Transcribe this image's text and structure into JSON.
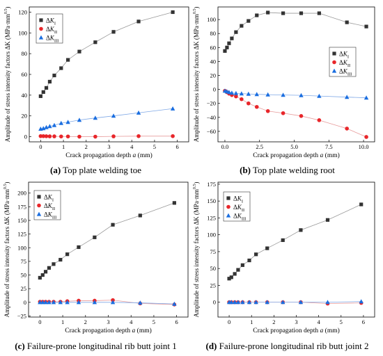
{
  "figure": {
    "captions": [
      {
        "tag": "(a)",
        "text": " Top plate welding toe"
      },
      {
        "tag": "(b)",
        "text": " Top plate welding root"
      },
      {
        "tag": "(c)",
        "text": " Failure-prone longitudinal rib butt joint 1"
      },
      {
        "tag": "(d)",
        "text": " Failure-prone longitudinal rib butt joint 2"
      }
    ]
  },
  "colors": {
    "KI": "#333333",
    "KII": "#e8262a",
    "KIII": "#1a6ee0",
    "KI_line": "#999999",
    "KII_line": "#e79a9a",
    "KIII_line": "#7fa8e6"
  },
  "chart_data": [
    {
      "type": "line",
      "panel": "a",
      "xlabel": "Crack propagation depth",
      "xlabel_var": "a",
      "xlabel_unit": "(mm)",
      "ylabel": "Amplitude of stress intensity factors ΔK (MPa·mm^0.5)",
      "xlim": [
        -0.5,
        6.5
      ],
      "ylim": [
        -5,
        125
      ],
      "xticks": [
        0,
        1,
        2,
        3,
        4,
        5,
        6
      ],
      "yticks": [
        0,
        20,
        40,
        60,
        80,
        100,
        120
      ],
      "legend_position": "top-left",
      "grid": false,
      "series": [
        {
          "name": "ΔKI",
          "sym": "K",
          "sub": "I",
          "marker": "square",
          "x": [
            0,
            0.12,
            0.25,
            0.4,
            0.6,
            0.9,
            1.2,
            1.7,
            2.4,
            3.2,
            4.3,
            5.8
          ],
          "y": [
            39,
            43,
            47,
            53,
            59,
            66,
            74,
            82,
            91,
            101,
            111,
            120
          ]
        },
        {
          "name": "ΔKII",
          "sym": "K",
          "sub": "II",
          "marker": "circle",
          "x": [
            0,
            0.12,
            0.25,
            0.4,
            0.6,
            0.9,
            1.2,
            1.7,
            2.4,
            3.2,
            4.3,
            5.8
          ],
          "y": [
            0.5,
            0.5,
            0.4,
            0.3,
            0.3,
            0.2,
            0.2,
            0,
            0,
            0.3,
            0.5,
            0.5
          ]
        },
        {
          "name": "ΔKIII",
          "sym": "K",
          "sub": "III",
          "marker": "triangle",
          "x": [
            0,
            0.12,
            0.25,
            0.4,
            0.6,
            0.9,
            1.2,
            1.7,
            2.4,
            3.2,
            4.3,
            5.8
          ],
          "y": [
            7.5,
            8,
            9,
            10,
            11,
            13,
            14,
            16,
            18,
            20,
            23,
            27
          ]
        }
      ]
    },
    {
      "type": "line",
      "panel": "b",
      "xlabel": "Crack propagation depth",
      "xlabel_var": "a",
      "xlabel_unit": "(mm)",
      "ylabel": "Amplitude of stress intensity factors ΔK (MPa·mm^0.5)",
      "xlim": [
        -0.5,
        10.8
      ],
      "ylim": [
        -75,
        118
      ],
      "xticks": [
        0.0,
        2.5,
        5.0,
        7.5,
        10.0
      ],
      "yticks": [
        -60,
        -40,
        -20,
        0,
        20,
        40,
        60,
        80,
        100
      ],
      "legend_position": "right",
      "grid": false,
      "series": [
        {
          "name": "ΔKI",
          "sym": "K",
          "sub": "I",
          "marker": "square",
          "x": [
            0,
            0.15,
            0.3,
            0.5,
            0.8,
            1.2,
            1.7,
            2.3,
            3.1,
            4.2,
            5.5,
            6.8,
            8.8,
            10.2
          ],
          "y": [
            55,
            60,
            66,
            73,
            82,
            91,
            98,
            106,
            110,
            109,
            109,
            109,
            96,
            90
          ]
        },
        {
          "name": "ΔKII",
          "sym": "K",
          "sub": "II",
          "marker": "circle",
          "x": [
            0,
            0.15,
            0.3,
            0.5,
            0.8,
            1.2,
            1.7,
            2.3,
            3.1,
            4.2,
            5.5,
            6.8,
            8.8,
            10.2
          ],
          "y": [
            -2,
            -4,
            -6,
            -8,
            -10,
            -14,
            -20,
            -25,
            -31,
            -34,
            -38,
            -44,
            -56,
            -68
          ]
        },
        {
          "name": "ΔKIII",
          "sym": "K",
          "sub": "III",
          "marker": "triangle",
          "x": [
            0,
            0.15,
            0.3,
            0.5,
            0.8,
            1.2,
            1.7,
            2.3,
            3.1,
            4.2,
            5.5,
            6.8,
            8.8,
            10.2
          ],
          "y": [
            -2,
            -3,
            -4,
            -5,
            -5.5,
            -6,
            -6.5,
            -7,
            -7.5,
            -8,
            -8.5,
            -9.5,
            -11,
            -12
          ]
        }
      ]
    },
    {
      "type": "line",
      "panel": "c",
      "xlabel": "Crack propagation depth",
      "xlabel_var": "a",
      "xlabel_unit": "(mm)",
      "ylabel": "Amplitude of stress intensity factors ΔK (MPa·mm^0.5)",
      "xlim": [
        -0.5,
        6.5
      ],
      "ylim": [
        -27,
        220
      ],
      "xticks": [
        0,
        1,
        2,
        3,
        4,
        5,
        6
      ],
      "yticks": [
        -25,
        0,
        25,
        50,
        75,
        100,
        125,
        150,
        175,
        200
      ],
      "legend_position": "top-left",
      "grid": false,
      "series": [
        {
          "name": "ΔKI",
          "sym": "K",
          "sub": "I",
          "marker": "square",
          "x": [
            0,
            0.12,
            0.25,
            0.4,
            0.6,
            0.9,
            1.2,
            1.7,
            2.4,
            3.2,
            4.4,
            5.9
          ],
          "y": [
            45,
            50,
            56,
            63,
            70,
            78,
            88,
            101,
            119,
            142,
            159,
            182
          ]
        },
        {
          "name": "ΔKII",
          "sym": "K",
          "sub": "II",
          "marker": "circle",
          "x": [
            0,
            0.12,
            0.25,
            0.4,
            0.6,
            0.9,
            1.2,
            1.7,
            2.4,
            3.2,
            4.4,
            5.9
          ],
          "y": [
            1,
            1,
            1,
            1,
            1,
            1,
            2,
            3,
            3,
            4,
            -2,
            -4
          ]
        },
        {
          "name": "ΔKIII",
          "sym": "K",
          "sub": "III",
          "marker": "triangle",
          "x": [
            0,
            0.12,
            0.25,
            0.4,
            0.6,
            0.9,
            1.2,
            1.7,
            2.4,
            3.2,
            4.4,
            5.9
          ],
          "y": [
            0,
            0,
            0,
            0,
            0,
            0,
            0,
            0,
            0,
            0,
            -1,
            -3
          ]
        }
      ]
    },
    {
      "type": "line",
      "panel": "d",
      "xlabel": "Crack propagation depth",
      "xlabel_var": "a",
      "xlabel_unit": "(mm)",
      "ylabel": "Amplitude of stress intensity factors ΔK (MPa·mm^0.5)",
      "xlim": [
        -0.5,
        6.5
      ],
      "ylim": [
        -22,
        178
      ],
      "xticks": [
        0,
        1,
        2,
        3,
        4,
        5,
        6
      ],
      "yticks": [
        -25,
        0,
        25,
        50,
        75,
        100,
        125,
        150,
        175
      ],
      "legend_position": "top-left",
      "grid": false,
      "series": [
        {
          "name": "ΔKI",
          "sym": "K",
          "sub": "I",
          "marker": "square",
          "x": [
            0,
            0.1,
            0.25,
            0.4,
            0.6,
            0.9,
            1.2,
            1.7,
            2.4,
            3.2,
            4.4,
            5.9
          ],
          "y": [
            35,
            37,
            42,
            48,
            55,
            62,
            71,
            80,
            92,
            107,
            122,
            145
          ]
        },
        {
          "name": "ΔKII",
          "sym": "K",
          "sub": "II",
          "marker": "circle",
          "x": [
            0,
            0.1,
            0.25,
            0.4,
            0.6,
            0.9,
            1.2,
            1.7,
            2.4,
            3.2,
            4.4,
            5.9
          ],
          "y": [
            0,
            0,
            0,
            0,
            0,
            0,
            0,
            0,
            0,
            0,
            -2,
            -1
          ]
        },
        {
          "name": "ΔKIII",
          "sym": "K",
          "sub": "III",
          "marker": "triangle",
          "x": [
            0,
            0.1,
            0.25,
            0.4,
            0.6,
            0.9,
            1.2,
            1.7,
            2.4,
            3.2,
            4.4,
            5.9
          ],
          "y": [
            0,
            0,
            0,
            0,
            0,
            0,
            0,
            0,
            0,
            0,
            0,
            1
          ]
        }
      ]
    }
  ]
}
